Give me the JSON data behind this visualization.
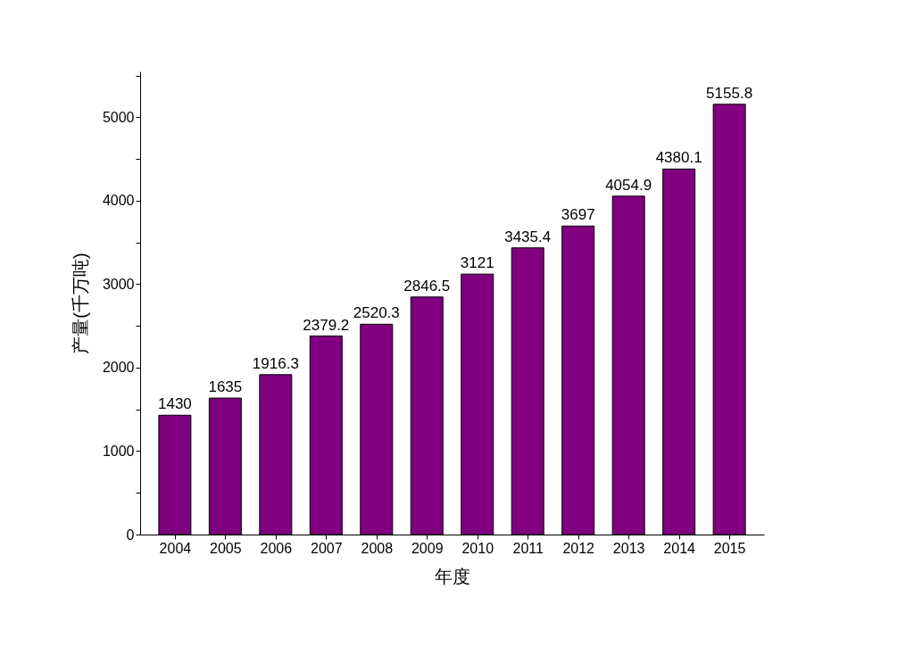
{
  "chart_data": {
    "type": "bar",
    "xlabel": "年度",
    "ylabel": "产量(千万吨)",
    "categories": [
      "2004",
      "2005",
      "2006",
      "2007",
      "2008",
      "2009",
      "2010",
      "2011",
      "2012",
      "2013",
      "2014",
      "2015"
    ],
    "values": [
      1430,
      1635,
      1916.3,
      2379.2,
      2520.3,
      2846.5,
      3121,
      3435.4,
      3697,
      4054.9,
      4380.1,
      5155.8
    ],
    "color": "#800080",
    "ylim": [
      0,
      5550
    ],
    "yticks": [
      0,
      {
        "value": 500,
        "label": null
      },
      1000,
      {
        "value": 1500,
        "label": null
      },
      2000,
      {
        "value": 2500,
        "label": null
      },
      3000,
      {
        "value": 3500,
        "label": null
      },
      4000,
      {
        "value": 4500,
        "label": null
      },
      5000,
      {
        "value": 5500,
        "label": null
      }
    ],
    "data_labels": true,
    "grid": false
  }
}
